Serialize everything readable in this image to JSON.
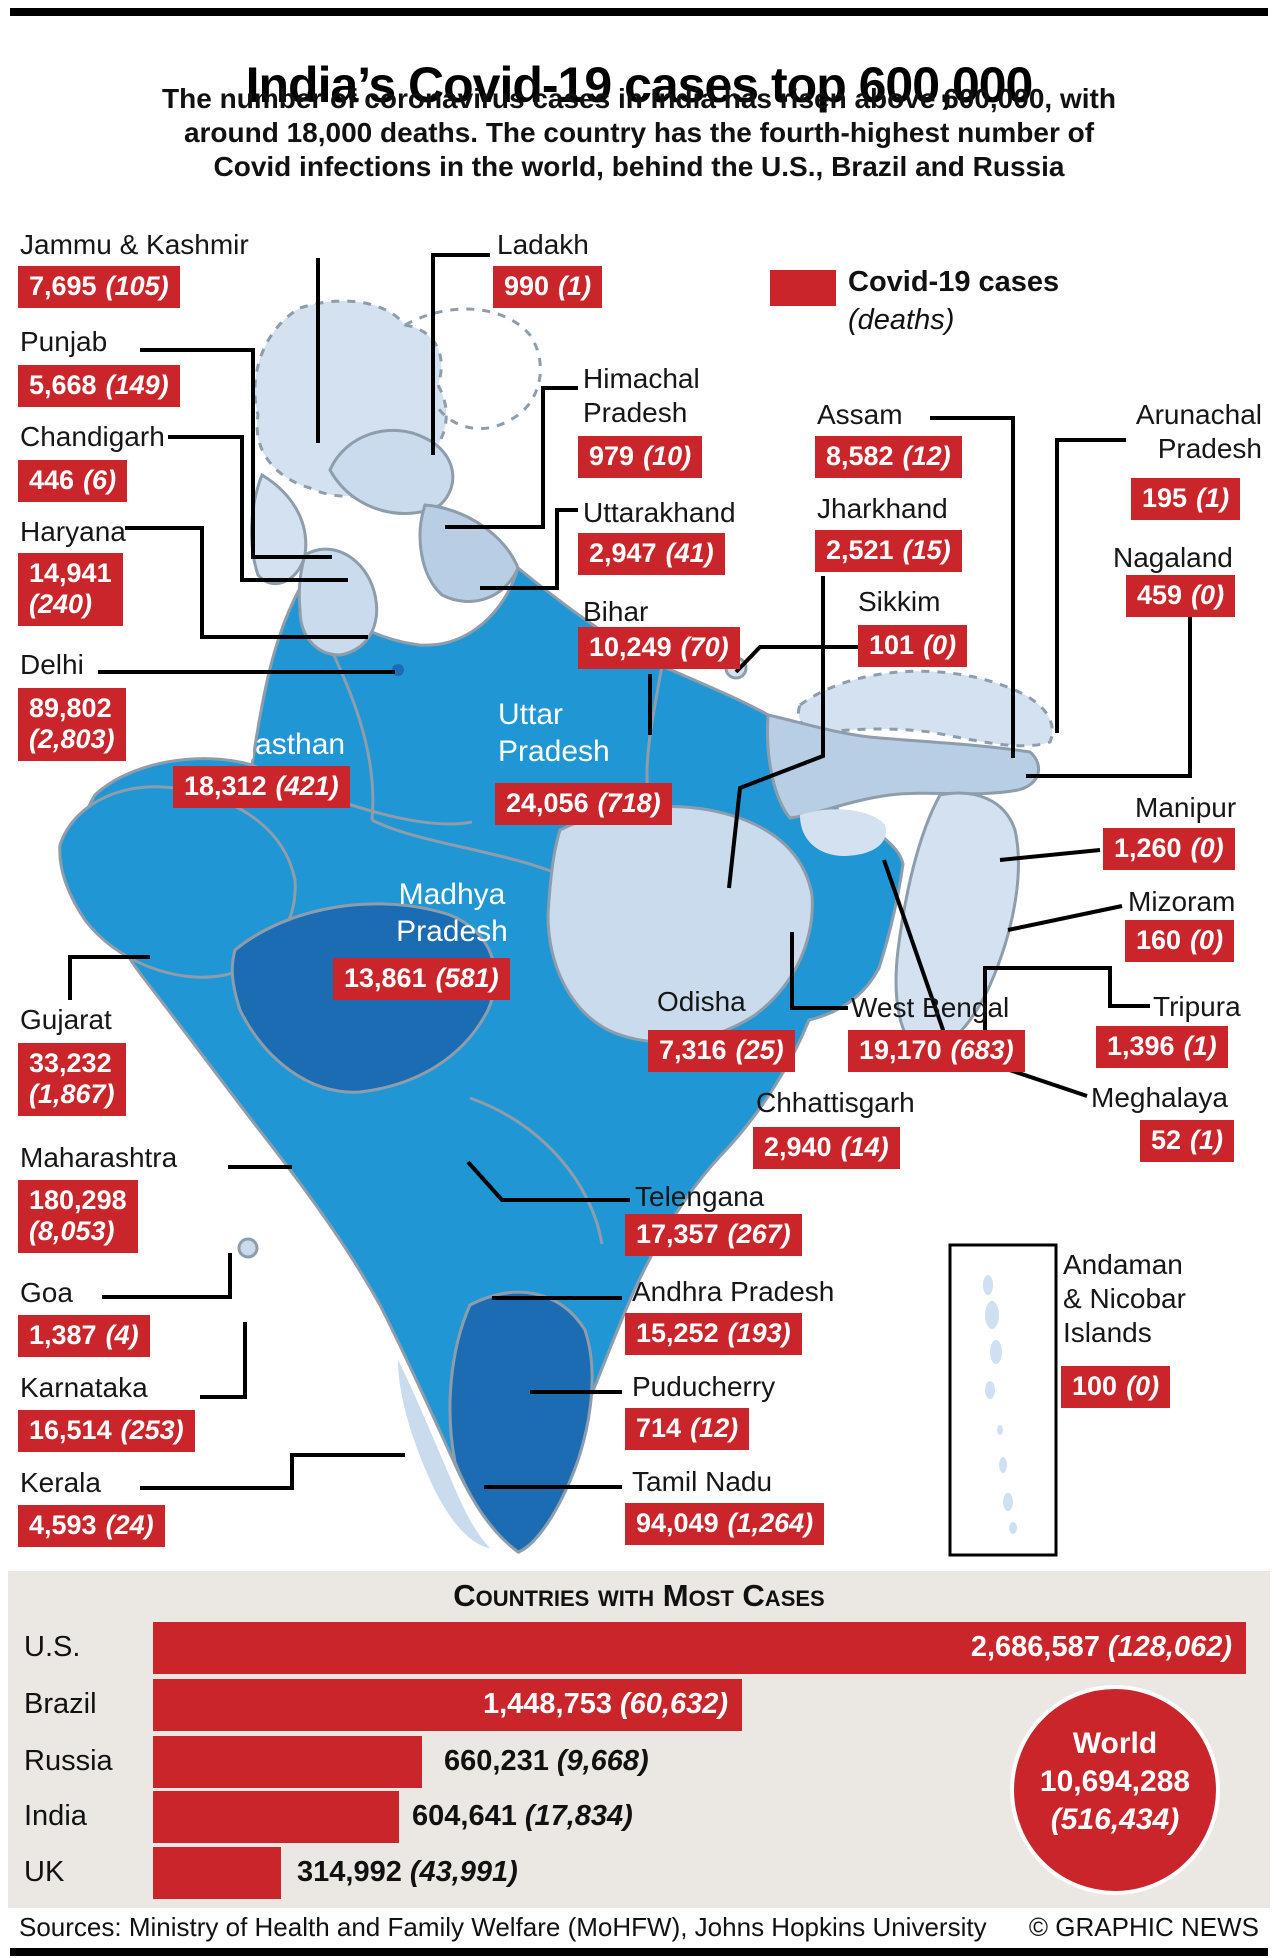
{
  "header": {
    "title": "India’s Covid-19 cases top 600,000",
    "subtitle": "The number of coronavirus cases in India has risen above 600,000, with\naround 18,000 deaths. The country has the fourth-highest number of\nCovid infections in the world, behind the U.S., Brazil and Russia"
  },
  "legend": {
    "label": "Covid-19 cases",
    "sublabel": "(deaths)",
    "swatch_color": "#c9252b"
  },
  "colors": {
    "accent_red": "#c9252b",
    "map_bright_blue": "#2097d4",
    "map_dark_blue": "#1b6cb2",
    "map_pale_blue": "#d3e1f0",
    "map_medium_blue": "#b7cee4",
    "panel_background": "#ebe8e4"
  },
  "chart_data": [
    {
      "type": "table",
      "title": "Covid-19 cases (deaths) by Indian state and union territory",
      "columns": [
        "State/UT",
        "Cases",
        "Deaths"
      ],
      "rows": [
        [
          "Jammu & Kashmir",
          "7,695",
          "(105)"
        ],
        [
          "Punjab",
          "5,668",
          "(149)"
        ],
        [
          "Chandigarh",
          "446",
          "(6)"
        ],
        [
          "Haryana",
          "14,941",
          "(240)"
        ],
        [
          "Delhi",
          "89,802",
          "(2,803)"
        ],
        [
          "Ladakh",
          "990",
          "(1)"
        ],
        [
          "Himachal\nPradesh",
          "979",
          "(10)"
        ],
        [
          "Uttarakhand",
          "2,947",
          "(41)"
        ],
        [
          "Bihar",
          "10,249",
          "(70)"
        ],
        [
          "Assam",
          "8,582",
          "(12)"
        ],
        [
          "Jharkhand",
          "2,521",
          "(15)"
        ],
        [
          "Sikkim",
          "101",
          "(0)"
        ],
        [
          "Arunachal\nPradesh",
          "195",
          "(1)"
        ],
        [
          "Nagaland",
          "459",
          "(0)"
        ],
        [
          "Manipur",
          "1,260",
          "(0)"
        ],
        [
          "Mizoram",
          "160",
          "(0)"
        ],
        [
          "Tripura",
          "1,396",
          "(1)"
        ],
        [
          "Meghalaya",
          "52",
          "(1)"
        ],
        [
          "Rajasthan",
          "18,312",
          "(421)"
        ],
        [
          "Uttar\nPradesh",
          "24,056",
          "(718)"
        ],
        [
          "Madhya\nPradesh",
          "13,861",
          "(581)"
        ],
        [
          "Gujarat",
          "33,232",
          "(1,867)"
        ],
        [
          "Maharashtra",
          "180,298",
          "(8,053)"
        ],
        [
          "Goa",
          "1,387",
          "(4)"
        ],
        [
          "Karnataka",
          "16,514",
          "(253)"
        ],
        [
          "Kerala",
          "4,593",
          "(24)"
        ],
        [
          "Odisha",
          "7,316",
          "(25)"
        ],
        [
          "West Bengal",
          "19,170",
          "(683)"
        ],
        [
          "Chhattisgarh",
          "2,940",
          "(14)"
        ],
        [
          "Telengana",
          "17,357",
          "(267)"
        ],
        [
          "Andhra Pradesh",
          "15,252",
          "(193)"
        ],
        [
          "Puducherry",
          "714",
          "(12)"
        ],
        [
          "Tamil Nadu",
          "94,049",
          "(1,264)"
        ],
        [
          "Andaman\n& Nicobar\nIslands",
          "100",
          "(0)"
        ]
      ]
    },
    {
      "type": "bar",
      "orientation": "horizontal",
      "title": "Countries with Most Cases",
      "categories": [
        "U.S.",
        "Brazil",
        "Russia",
        "India",
        "UK"
      ],
      "values": [
        2686587,
        1448753,
        660231,
        604641,
        314992
      ],
      "deaths": [
        128062,
        60632,
        9668,
        17834,
        43991
      ],
      "value_labels": [
        "2,686,587",
        "1,448,753",
        "660,231",
        "604,641",
        "314,992"
      ],
      "death_labels": [
        "(128,062)",
        "(60,632)",
        "(9,668)",
        "(17,834)",
        "(43,991)"
      ],
      "xlim": [
        0,
        2686587
      ],
      "legend_position": "none",
      "world": {
        "label": "World",
        "cases_label": "10,694,288",
        "deaths_label": "(516,434)"
      }
    }
  ],
  "footer": {
    "sources": "Sources: Ministry of Health and Family Welfare (MoHFW), Johns Hopkins University",
    "credit": "© GRAPHIC NEWS"
  }
}
